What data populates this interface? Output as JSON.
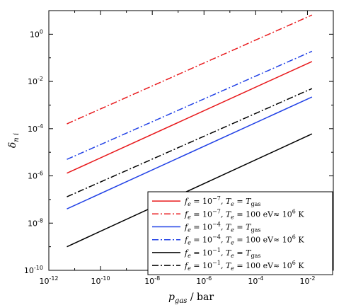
{
  "chart_data": {
    "type": "line",
    "xscale": "log",
    "yscale": "log",
    "xlim": [
      1e-12,
      0.1
    ],
    "ylim": [
      1e-10,
      10.0
    ],
    "xticks": [
      {
        "value": 1e-12,
        "base": "10",
        "exp": "-12"
      },
      {
        "value": 1e-10,
        "base": "10",
        "exp": "-10"
      },
      {
        "value": 1e-08,
        "base": "10",
        "exp": "-8"
      },
      {
        "value": 1e-06,
        "base": "10",
        "exp": "-6"
      },
      {
        "value": 0.0001,
        "base": "10",
        "exp": "-4"
      },
      {
        "value": 0.01,
        "base": "10",
        "exp": "-2"
      }
    ],
    "yticks": [
      {
        "value": 1.0,
        "base": "10",
        "exp": "0"
      },
      {
        "value": 0.01,
        "base": "10",
        "exp": "-2"
      },
      {
        "value": 0.0001,
        "base": "10",
        "exp": "-4"
      },
      {
        "value": 1e-06,
        "base": "10",
        "exp": "-6"
      },
      {
        "value": 1e-08,
        "base": "10",
        "exp": "-8"
      },
      {
        "value": 1e-10,
        "base": "10",
        "exp": "-10"
      }
    ],
    "xlabel": {
      "sym": "p",
      "sub": "gas",
      "unit": " / bar"
    },
    "ylabel": {
      "sym": "δ",
      "sub": "n i"
    },
    "grid": false,
    "legend_position": "bottom-right",
    "series": [
      {
        "name": "f_e = 10^-7, T_e = T_gas",
        "color": "#e8191c",
        "dash": "solid",
        "legend_parts": [
          "f",
          "e",
          " = 10",
          "−7",
          ", T",
          "e",
          " = T",
          "gas",
          ""
        ],
        "x": [
          5e-12,
          0.015
        ],
        "y": [
          1.3e-06,
          0.07
        ]
      },
      {
        "name": "f_e = 10^-7, T_e = 100 eV ≈ 10^6 K",
        "color": "#e8191c",
        "dash": "dashdot",
        "legend_parts": [
          "f",
          "e",
          " = 10",
          "−7",
          ", T",
          "e",
          " = 100 eV≈ 10",
          "6",
          " K"
        ],
        "x": [
          5e-12,
          0.015
        ],
        "y": [
          0.00016,
          6.5
        ]
      },
      {
        "name": "f_e = 10^-4, T_e = T_gas",
        "color": "#2242e6",
        "dash": "solid",
        "legend_parts": [
          "f",
          "e",
          " = 10",
          "−4",
          ", T",
          "e",
          " = T",
          "gas",
          ""
        ],
        "x": [
          5e-12,
          0.015
        ],
        "y": [
          4e-08,
          0.0022
        ]
      },
      {
        "name": "f_e = 10^-4, T_e = 100 eV ≈ 10^6 K",
        "color": "#2242e6",
        "dash": "dashdot",
        "legend_parts": [
          "f",
          "e",
          " = 10",
          "−4",
          ", T",
          "e",
          " = 100 eV≈ 10",
          "6",
          " K"
        ],
        "x": [
          5e-12,
          0.015
        ],
        "y": [
          5e-06,
          0.19
        ]
      },
      {
        "name": "f_e = 10^-1, T_e = T_gas",
        "color": "#000000",
        "dash": "solid",
        "legend_parts": [
          "f",
          "e",
          " = 10",
          "−1",
          ", T",
          "e",
          " = T",
          "gas",
          ""
        ],
        "x": [
          5e-12,
          0.015
        ],
        "y": [
          1e-09,
          6e-05
        ]
      },
      {
        "name": "f_e = 10^-1, T_e = 100 eV ≈ 10^6 K",
        "color": "#000000",
        "dash": "dashdot",
        "legend_parts": [
          "f",
          "e",
          " = 10",
          "−1",
          ", T",
          "e",
          " = 100 eV≈ 10",
          "6",
          " K"
        ],
        "x": [
          5e-12,
          0.015
        ],
        "y": [
          1.3e-07,
          0.005
        ]
      }
    ]
  }
}
